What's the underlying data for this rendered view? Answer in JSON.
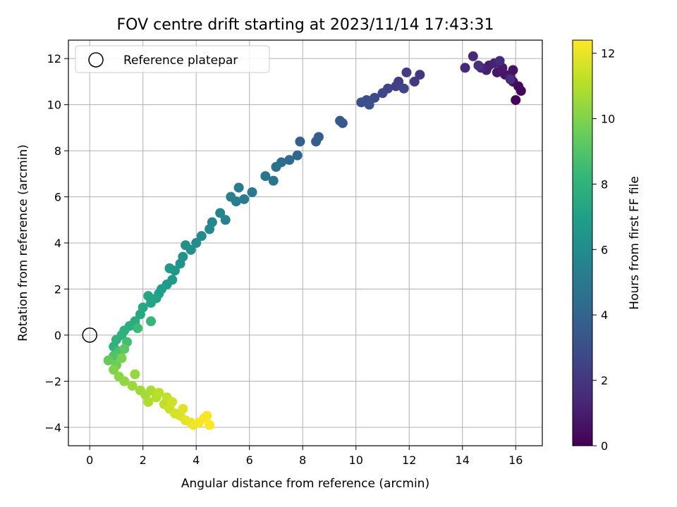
{
  "chart_data": {
    "type": "scatter",
    "title": "FOV centre drift starting at 2023/11/14 17:43:31",
    "xlabel": "Angular distance from reference (arcmin)",
    "ylabel": "Rotation from reference (arcmin)",
    "xlim": [
      -0.8,
      17
    ],
    "ylim": [
      -4.8,
      12.8
    ],
    "xticks": [
      0,
      2,
      4,
      6,
      8,
      10,
      12,
      14,
      16
    ],
    "yticks": [
      -4,
      -2,
      0,
      2,
      4,
      6,
      8,
      10,
      12
    ],
    "grid": true,
    "legend": {
      "position": "top-left",
      "entries": [
        "Reference platepar"
      ]
    },
    "reference_point": {
      "x": 0,
      "y": 0
    },
    "colorbar": {
      "label": "Hours from first FF file",
      "range": [
        0,
        12.4
      ],
      "ticks": [
        0,
        2,
        4,
        6,
        8,
        10,
        12
      ],
      "colormap": "viridis",
      "colors": [
        "#440154",
        "#482878",
        "#3e4989",
        "#31688e",
        "#26828e",
        "#1f9e89",
        "#35b779",
        "#6ece58",
        "#b5de2b",
        "#fde725"
      ]
    },
    "points": [
      [
        16.0,
        10.2,
        0.1
      ],
      [
        16.2,
        10.6,
        0.2
      ],
      [
        16.1,
        10.8,
        0.3
      ],
      [
        15.9,
        11.0,
        0.4
      ],
      [
        15.8,
        11.2,
        0.5
      ],
      [
        15.9,
        11.5,
        0.6
      ],
      [
        15.6,
        11.3,
        0.7
      ],
      [
        15.3,
        11.4,
        0.8
      ],
      [
        15.5,
        11.6,
        0.9
      ],
      [
        15.0,
        11.7,
        1.0
      ],
      [
        14.9,
        11.5,
        1.1
      ],
      [
        15.2,
        11.8,
        1.2
      ],
      [
        14.7,
        11.6,
        1.3
      ],
      [
        14.4,
        12.1,
        1.4
      ],
      [
        14.1,
        11.6,
        1.5
      ],
      [
        15.4,
        11.9,
        1.6
      ],
      [
        15.8,
        11.1,
        1.7
      ],
      [
        14.6,
        11.7,
        1.8
      ],
      [
        12.4,
        11.3,
        2.0
      ],
      [
        12.2,
        11.0,
        2.1
      ],
      [
        11.9,
        11.4,
        2.2
      ],
      [
        11.6,
        11.0,
        2.3
      ],
      [
        11.5,
        10.8,
        2.4
      ],
      [
        11.2,
        10.7,
        2.5
      ],
      [
        11.8,
        10.7,
        2.6
      ],
      [
        11.0,
        10.5,
        2.7
      ],
      [
        10.7,
        10.3,
        2.8
      ],
      [
        10.4,
        10.2,
        2.9
      ],
      [
        10.2,
        10.1,
        3.0
      ],
      [
        10.5,
        10.0,
        3.1
      ],
      [
        9.5,
        9.2,
        3.3
      ],
      [
        9.4,
        9.3,
        3.4
      ],
      [
        8.6,
        8.6,
        3.6
      ],
      [
        8.5,
        8.4,
        3.7
      ],
      [
        7.9,
        8.4,
        3.9
      ],
      [
        7.8,
        7.8,
        4.1
      ],
      [
        7.5,
        7.6,
        4.3
      ],
      [
        7.2,
        7.5,
        4.4
      ],
      [
        7.0,
        7.3,
        4.5
      ],
      [
        6.9,
        6.7,
        4.7
      ],
      [
        6.6,
        6.9,
        4.8
      ],
      [
        6.1,
        6.2,
        5.0
      ],
      [
        5.8,
        5.9,
        5.1
      ],
      [
        5.6,
        6.4,
        5.2
      ],
      [
        5.5,
        5.8,
        5.3
      ],
      [
        5.3,
        6.0,
        5.4
      ],
      [
        5.1,
        5.0,
        5.5
      ],
      [
        4.9,
        5.3,
        5.6
      ],
      [
        4.6,
        4.9,
        5.7
      ],
      [
        4.5,
        4.6,
        5.8
      ],
      [
        4.2,
        4.3,
        5.9
      ],
      [
        4.0,
        4.0,
        6.0
      ],
      [
        3.8,
        3.7,
        6.1
      ],
      [
        3.6,
        3.9,
        6.2
      ],
      [
        3.5,
        3.4,
        6.3
      ],
      [
        3.4,
        3.1,
        6.4
      ],
      [
        3.2,
        2.8,
        6.5
      ],
      [
        3.0,
        2.9,
        6.6
      ],
      [
        3.1,
        2.4,
        6.7
      ],
      [
        2.9,
        2.2,
        6.8
      ],
      [
        2.7,
        2.0,
        6.9
      ],
      [
        2.6,
        1.8,
        7.0
      ],
      [
        2.5,
        1.6,
        7.1
      ],
      [
        2.3,
        1.4,
        7.2
      ],
      [
        2.2,
        1.7,
        7.3
      ],
      [
        2.0,
        1.2,
        7.4
      ],
      [
        1.9,
        0.9,
        7.5
      ],
      [
        1.7,
        0.6,
        7.6
      ],
      [
        1.5,
        0.4,
        7.7
      ],
      [
        1.3,
        0.2,
        7.8
      ],
      [
        1.2,
        0.0,
        7.9
      ],
      [
        1.0,
        -0.2,
        7.95
      ],
      [
        0.9,
        -0.5,
        8.0
      ],
      [
        2.3,
        0.6,
        8.2
      ],
      [
        1.8,
        0.3,
        8.4
      ],
      [
        1.4,
        -0.3,
        8.6
      ],
      [
        1.1,
        -0.7,
        8.8
      ],
      [
        0.9,
        -0.9,
        9.0
      ],
      [
        1.3,
        -0.6,
        9.2
      ],
      [
        0.7,
        -1.1,
        9.4
      ],
      [
        1.0,
        -1.3,
        9.6
      ],
      [
        1.2,
        -1.0,
        9.8
      ],
      [
        0.9,
        -1.5,
        10.0
      ],
      [
        1.1,
        -1.8,
        10.2
      ],
      [
        1.3,
        -2.0,
        10.3
      ],
      [
        1.7,
        -1.7,
        10.4
      ],
      [
        1.6,
        -2.2,
        10.5
      ],
      [
        1.9,
        -2.4,
        10.6
      ],
      [
        2.1,
        -2.6,
        10.7
      ],
      [
        2.3,
        -2.4,
        10.8
      ],
      [
        2.2,
        -2.9,
        10.9
      ],
      [
        2.5,
        -2.7,
        11.0
      ],
      [
        2.6,
        -2.5,
        11.1
      ],
      [
        2.8,
        -3.0,
        11.2
      ],
      [
        2.9,
        -2.7,
        11.3
      ],
      [
        3.0,
        -3.2,
        11.4
      ],
      [
        3.1,
        -2.9,
        11.5
      ],
      [
        3.2,
        -3.4,
        11.6
      ],
      [
        3.4,
        -3.5,
        11.7
      ],
      [
        3.5,
        -3.2,
        11.8
      ],
      [
        3.6,
        -3.7,
        11.9
      ],
      [
        3.8,
        -3.8,
        12.0
      ],
      [
        3.9,
        -3.9,
        12.1
      ],
      [
        4.1,
        -3.8,
        12.2
      ],
      [
        4.3,
        -3.6,
        12.3
      ],
      [
        4.4,
        -3.5,
        12.3
      ],
      [
        4.5,
        -3.9,
        12.4
      ]
    ]
  }
}
